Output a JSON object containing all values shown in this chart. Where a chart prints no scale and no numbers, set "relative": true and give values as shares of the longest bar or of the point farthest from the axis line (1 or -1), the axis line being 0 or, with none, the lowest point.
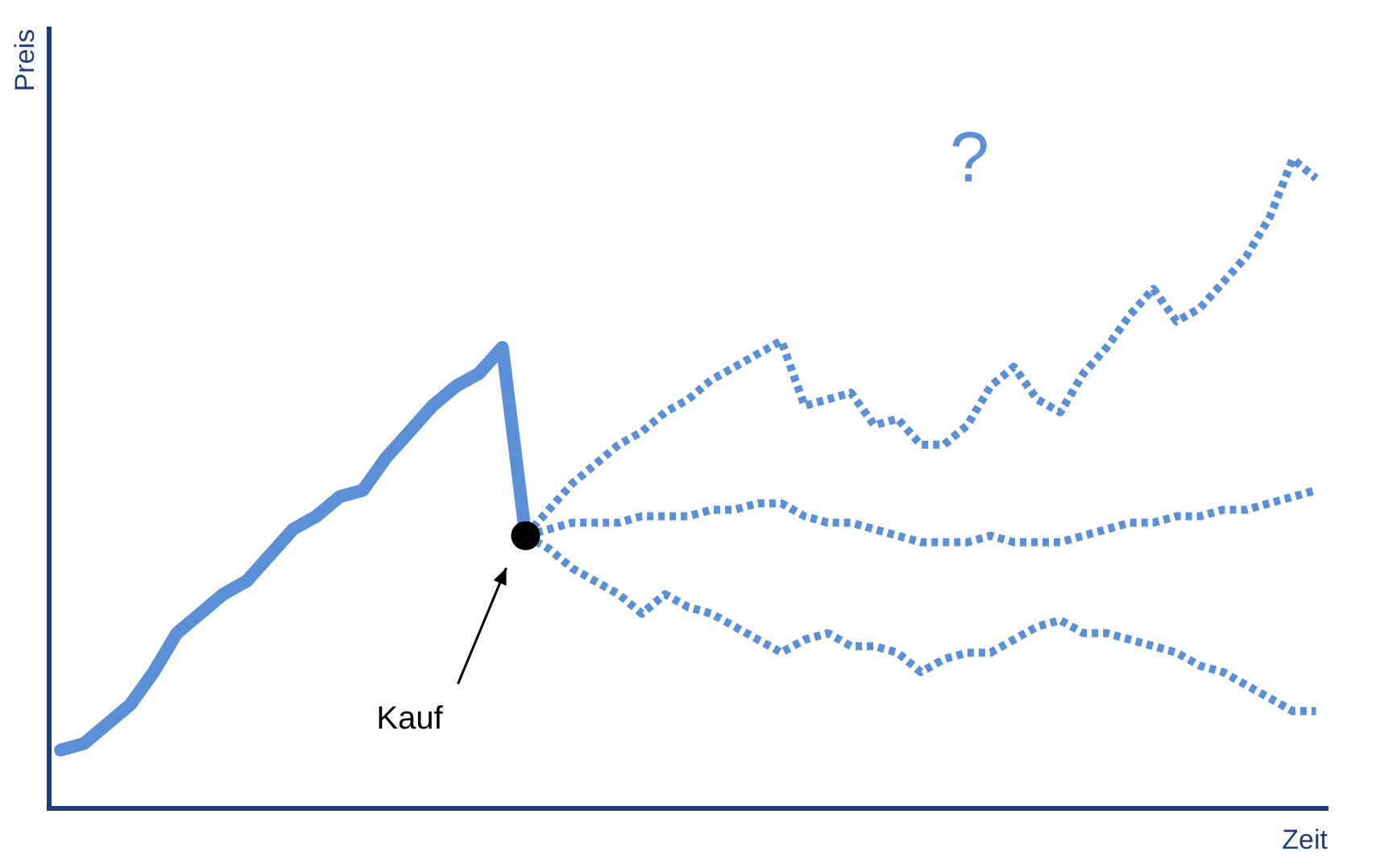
{
  "chart_data": {
    "type": "line",
    "relative": true,
    "xlabel": "Zeit",
    "ylabel": "Preis",
    "grid": false,
    "legend": false,
    "tick_labels": false,
    "marker": "none",
    "categories": [
      null,
      null,
      null,
      null,
      null,
      null,
      null,
      null,
      null,
      null,
      null,
      null,
      null,
      null,
      null,
      null,
      null,
      null,
      null,
      null,
      null,
      null,
      null,
      null,
      null,
      null,
      null,
      null,
      null,
      null,
      null,
      null,
      null,
      null,
      null,
      null,
      null,
      null,
      null,
      null,
      null,
      null,
      null,
      null,
      null,
      null,
      null,
      null,
      null,
      null,
      null,
      null,
      null,
      null,
      null
    ],
    "series": [
      {
        "color": "#5b8fd6",
        "line_style": "solid",
        "values": [
          0.09,
          0.1,
          0.13,
          0.16,
          0.21,
          0.27,
          0.3,
          0.33,
          0.35,
          0.39,
          0.43,
          0.45,
          0.48,
          0.49,
          0.54,
          0.58,
          0.62,
          0.65,
          0.67,
          0.71,
          0.42,
          null,
          null,
          null,
          null,
          null,
          null,
          null,
          null,
          null,
          null,
          null,
          null,
          null,
          null,
          null,
          null,
          null,
          null,
          null,
          null,
          null,
          null,
          null,
          null,
          null,
          null,
          null,
          null,
          null,
          null,
          null,
          null,
          null,
          null
        ]
      },
      {
        "color": "#5b8fd6",
        "line_style": "dotted",
        "values": [
          null,
          null,
          null,
          null,
          null,
          null,
          null,
          null,
          null,
          null,
          null,
          null,
          null,
          null,
          null,
          null,
          null,
          null,
          null,
          null,
          0.42,
          0.46,
          0.5,
          0.53,
          0.56,
          0.58,
          0.61,
          0.63,
          0.66,
          0.68,
          0.7,
          0.72,
          0.62,
          0.63,
          0.64,
          0.59,
          0.6,
          0.56,
          0.56,
          0.59,
          0.65,
          0.68,
          0.63,
          0.61,
          0.67,
          0.71,
          0.76,
          0.8,
          0.75,
          0.77,
          0.81,
          0.85,
          0.91,
          1.0,
          0.97
        ]
      },
      {
        "color": "#5b8fd6",
        "line_style": "dotted",
        "values": [
          null,
          null,
          null,
          null,
          null,
          null,
          null,
          null,
          null,
          null,
          null,
          null,
          null,
          null,
          null,
          null,
          null,
          null,
          null,
          null,
          0.42,
          0.43,
          0.44,
          0.44,
          0.44,
          0.45,
          0.45,
          0.45,
          0.46,
          0.46,
          0.47,
          0.47,
          0.45,
          0.44,
          0.44,
          0.43,
          0.42,
          0.41,
          0.41,
          0.41,
          0.42,
          0.41,
          0.41,
          0.41,
          0.42,
          0.43,
          0.44,
          0.44,
          0.45,
          0.45,
          0.46,
          0.46,
          0.47,
          0.48,
          0.49
        ]
      },
      {
        "color": "#5b8fd6",
        "line_style": "dotted",
        "values": [
          null,
          null,
          null,
          null,
          null,
          null,
          null,
          null,
          null,
          null,
          null,
          null,
          null,
          null,
          null,
          null,
          null,
          null,
          null,
          null,
          0.42,
          0.4,
          0.37,
          0.35,
          0.33,
          0.3,
          0.33,
          0.31,
          0.3,
          0.28,
          0.26,
          0.24,
          0.26,
          0.27,
          0.25,
          0.25,
          0.24,
          0.21,
          0.23,
          0.24,
          0.24,
          0.26,
          0.28,
          0.29,
          0.27,
          0.27,
          0.26,
          0.25,
          0.24,
          0.22,
          0.21,
          0.19,
          0.17,
          0.15,
          0.15
        ]
      }
    ],
    "annotations": [
      "Kauf",
      "?"
    ]
  }
}
